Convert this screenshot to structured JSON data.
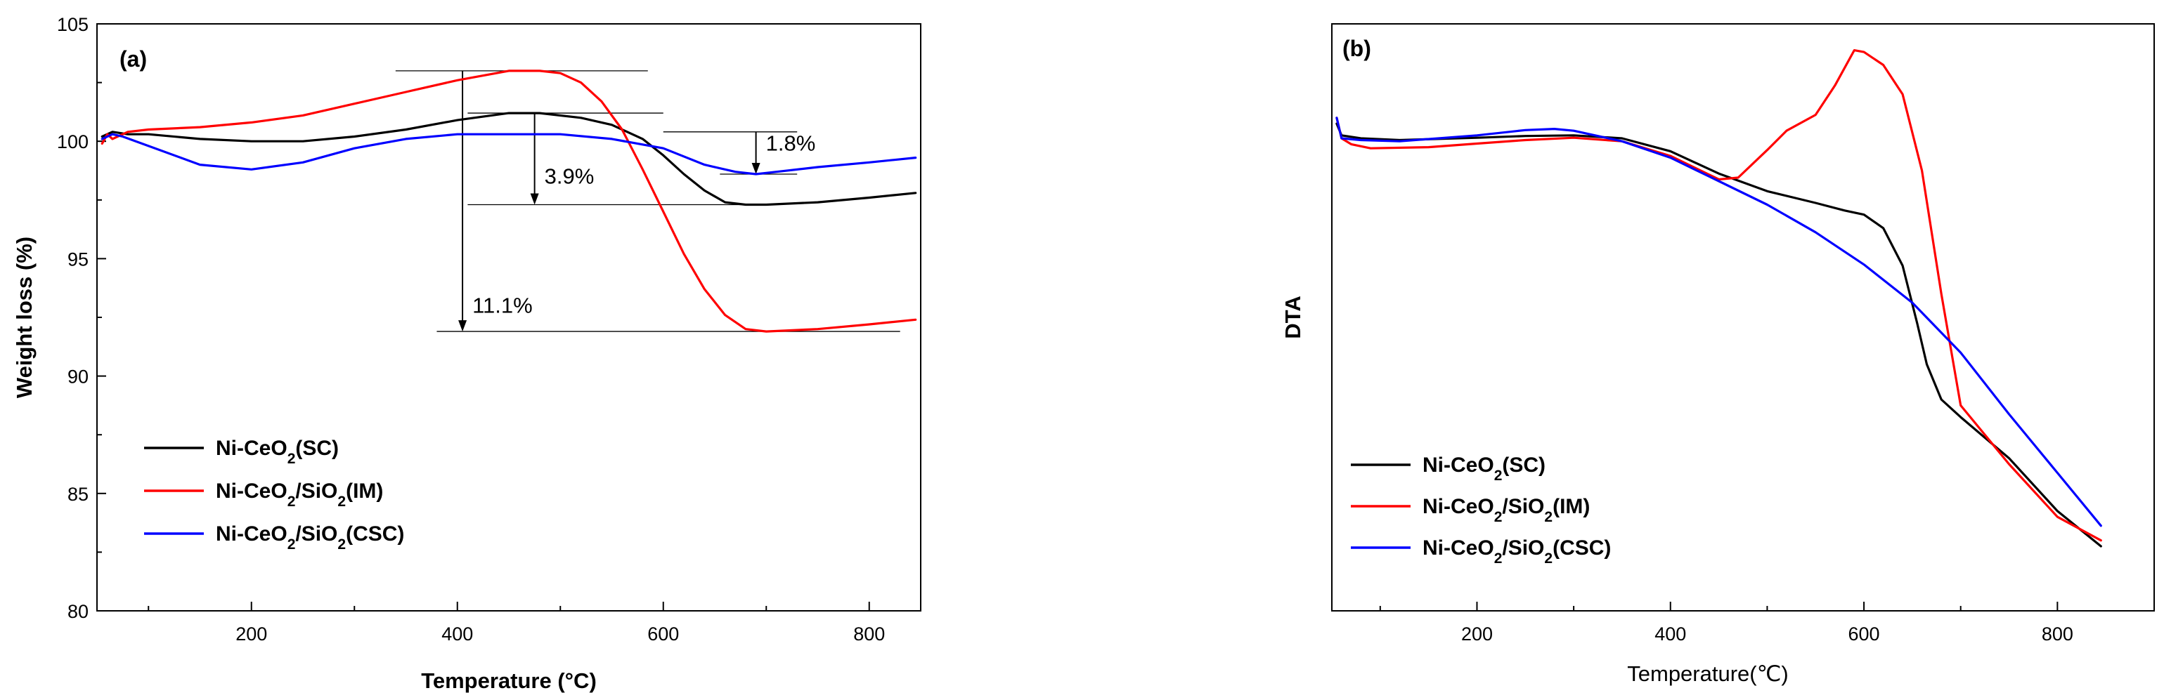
{
  "chart_data": [
    {
      "type": "line",
      "panel_label": "(a)",
      "xlabel": "Temperature (°C)",
      "ylabel": "Weight loss (%)",
      "xlim": [
        50,
        850
      ],
      "ylim": [
        80,
        105
      ],
      "xticks": [
        200,
        400,
        600,
        800
      ],
      "yticks": [
        80,
        85,
        90,
        95,
        100,
        105
      ],
      "legend_position": "lower-left",
      "series": [
        {
          "name": "Ni-CeO2(SC)",
          "label_base": "Ni-CeO",
          "label_sub": "2",
          "label_tail": "(SC)",
          "color": "#000000",
          "x": [
            55,
            65,
            80,
            100,
            150,
            200,
            250,
            300,
            350,
            400,
            450,
            480,
            520,
            550,
            580,
            600,
            620,
            640,
            660,
            680,
            700,
            750,
            800,
            845
          ],
          "y": [
            100.2,
            100.4,
            100.3,
            100.3,
            100.1,
            100.0,
            100.0,
            100.2,
            100.5,
            100.9,
            101.2,
            101.2,
            101.0,
            100.7,
            100.1,
            99.4,
            98.6,
            97.9,
            97.4,
            97.3,
            97.3,
            97.4,
            97.6,
            97.8
          ]
        },
        {
          "name": "Ni-CeO2/SiO2(IM)",
          "label_base": "Ni-CeO",
          "label_sub": "2",
          "label_mid": "/SiO",
          "label_sub2": "2",
          "label_tail": "(IM)",
          "color": "#ff0000",
          "x": [
            55,
            60,
            65,
            80,
            100,
            150,
            200,
            250,
            300,
            350,
            400,
            450,
            480,
            500,
            520,
            540,
            560,
            580,
            600,
            620,
            640,
            660,
            680,
            700,
            750,
            800,
            845
          ],
          "y": [
            99.9,
            100.3,
            100.1,
            100.4,
            100.5,
            100.6,
            100.8,
            101.1,
            101.6,
            102.1,
            102.6,
            103.0,
            103.0,
            102.9,
            102.5,
            101.7,
            100.5,
            98.8,
            97.0,
            95.2,
            93.7,
            92.6,
            92.0,
            91.9,
            92.0,
            92.2,
            92.4
          ]
        },
        {
          "name": "Ni-CeO2/SiO2(CSC)",
          "label_base": "Ni-CeO",
          "label_sub": "2",
          "label_mid": "/SiO",
          "label_sub2": "2",
          "label_tail": "(CSC)",
          "color": "#0000ff",
          "x": [
            55,
            65,
            75,
            100,
            150,
            200,
            250,
            300,
            350,
            400,
            450,
            500,
            550,
            600,
            640,
            670,
            690,
            710,
            750,
            800,
            845
          ],
          "y": [
            100.1,
            100.3,
            100.2,
            99.8,
            99.0,
            98.8,
            99.1,
            99.7,
            100.1,
            100.3,
            100.3,
            100.3,
            100.1,
            99.7,
            99.0,
            98.7,
            98.6,
            98.7,
            98.9,
            99.1,
            99.3
          ]
        }
      ],
      "annotations": [
        {
          "text": "1.8%",
          "arrow_x": 690,
          "y_from": 100.4,
          "y_to": 98.6,
          "top_line": [
            600,
            730
          ],
          "bottom_line": [
            655,
            730
          ]
        },
        {
          "text": "3.9%",
          "arrow_x": 475,
          "y_from": 101.2,
          "y_to": 97.3,
          "top_line": [
            410,
            600
          ],
          "bottom_line": [
            410,
            700
          ]
        },
        {
          "text": "11.1%",
          "arrow_x": 405,
          "y_from": 103.0,
          "y_to": 91.9,
          "top_line": [
            340,
            585
          ],
          "bottom_line": [
            380,
            830
          ]
        }
      ]
    },
    {
      "type": "line",
      "panel_label": "(b)",
      "xlabel": "Temperature(℃)",
      "ylabel": "DTA",
      "xlim": [
        50,
        900
      ],
      "ylim": [
        0,
        100
      ],
      "xticks": [
        200,
        400,
        600,
        800
      ],
      "yticks": [],
      "legend_position": "lower-left",
      "series": [
        {
          "name": "Ni-CeO2(SC)",
          "label_base": "Ni-CeO",
          "label_sub": "2",
          "label_tail": "(SC)",
          "color": "#000000",
          "x": [
            55,
            60,
            80,
            120,
            200,
            250,
            300,
            350,
            400,
            450,
            500,
            550,
            580,
            600,
            620,
            640,
            655,
            665,
            680,
            700,
            750,
            800,
            845
          ],
          "y": [
            83,
            81,
            80.5,
            80.2,
            80.6,
            80.9,
            81,
            80.5,
            78.3,
            74.5,
            71.5,
            69.5,
            68.2,
            67.5,
            65.2,
            58.8,
            49,
            42,
            36,
            33,
            26,
            17,
            11
          ]
        },
        {
          "name": "Ni-CeO2/SiO2(IM)",
          "label_base": "Ni-CeO",
          "label_sub": "2",
          "label_mid": "/SiO",
          "label_sub2": "2",
          "label_tail": "(IM)",
          "color": "#ff0000",
          "x": [
            55,
            60,
            70,
            90,
            150,
            200,
            250,
            300,
            350,
            400,
            450,
            470,
            500,
            520,
            550,
            570,
            590,
            600,
            620,
            640,
            660,
            680,
            700,
            750,
            800,
            845
          ],
          "y": [
            84,
            80.5,
            79.5,
            78.8,
            79,
            79.6,
            80.2,
            80.6,
            80,
            77.5,
            73.5,
            73.8,
            78.5,
            81.8,
            84.5,
            89.5,
            95.5,
            95.2,
            93,
            88,
            75,
            54,
            35,
            25,
            16,
            12
          ]
        },
        {
          "name": "Ni-CeO2/SiO2(CSC)",
          "label_base": "Ni-CeO",
          "label_sub": "2",
          "label_mid": "/SiO",
          "label_sub2": "2",
          "label_tail": "(CSC)",
          "color": "#0000ff",
          "x": [
            55,
            60,
            80,
            120,
            200,
            250,
            280,
            300,
            350,
            400,
            450,
            500,
            550,
            600,
            650,
            700,
            750,
            800,
            845
          ],
          "y": [
            84,
            80.5,
            80.2,
            80,
            81,
            81.9,
            82.1,
            81.8,
            80,
            77.2,
            73.2,
            69.2,
            64.5,
            59,
            52.5,
            44,
            33.5,
            23.5,
            14.5
          ]
        }
      ]
    }
  ]
}
